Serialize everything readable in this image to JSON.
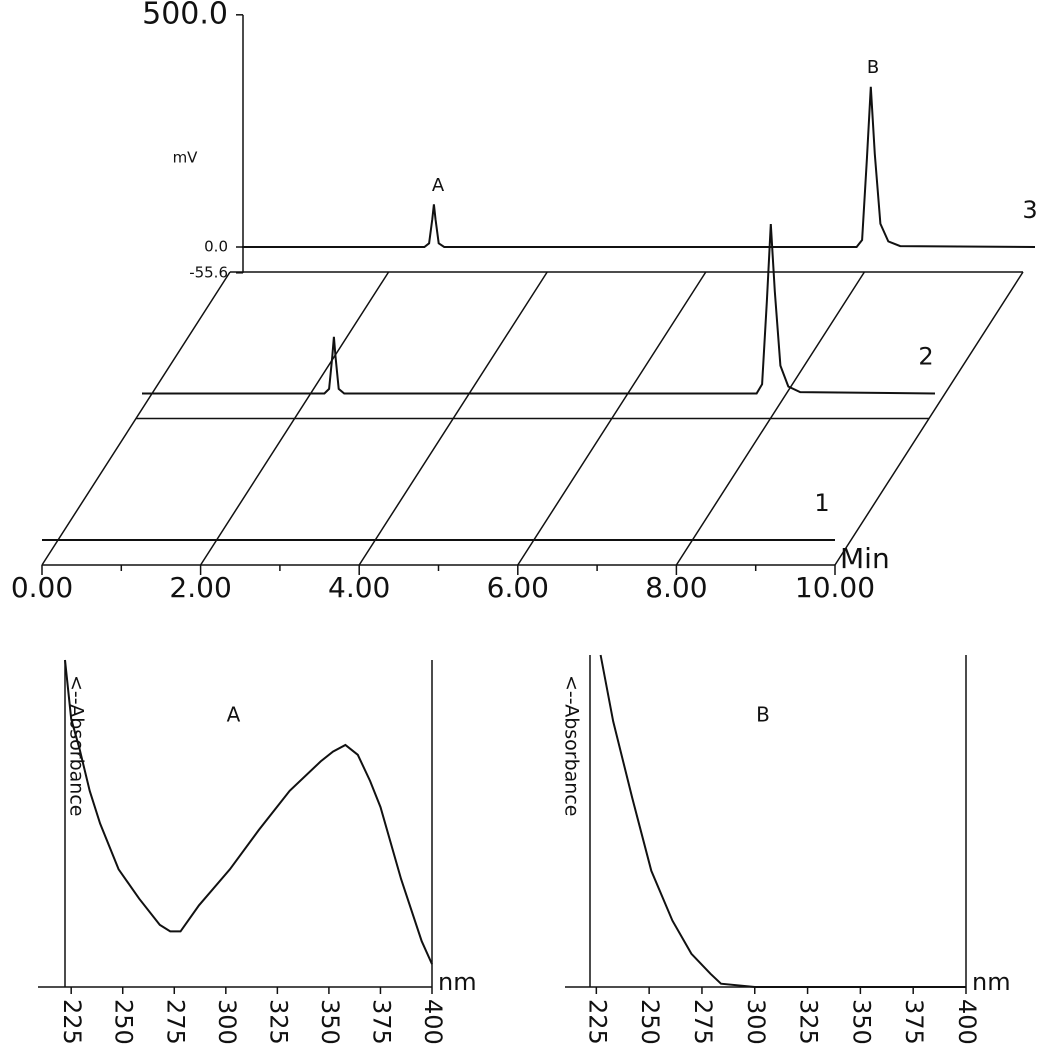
{
  "chart_data": [
    {
      "type": "stack3d",
      "ylabel": "mV",
      "xlabel": "Min",
      "ylim": [
        -55.6,
        500
      ],
      "yticks": [
        -55.6,
        {
          "value": 0,
          "label": "0.0"
        },
        {
          "value": 500,
          "label": "500.0"
        }
      ],
      "xlim": [
        0,
        10
      ],
      "xticks": [
        {
          "value": 0,
          "label": "0.00"
        },
        {
          "value": 2,
          "label": "2.00"
        },
        {
          "value": 4,
          "label": "4.00"
        },
        {
          "value": 6,
          "label": "6.00"
        },
        {
          "value": 8,
          "label": "8.00"
        },
        {
          "value": 10,
          "label": "10.00"
        }
      ],
      "peak_labels": [
        "A",
        "B"
      ],
      "x": [
        0,
        2.3,
        2.36,
        2.4,
        2.42,
        2.44,
        2.48,
        2.55,
        4.0,
        7.75,
        7.82,
        7.88,
        7.93,
        7.98,
        8.05,
        8.15,
        8.3,
        10
      ],
      "series": [
        {
          "name": "1",
          "color": "#000000",
          "values": [
            0,
            0,
            0,
            0,
            0,
            0,
            0,
            0,
            0,
            0,
            0,
            0,
            0,
            0,
            0,
            0,
            0,
            0
          ]
        },
        {
          "name": "2",
          "color": "#000000",
          "values": [
            0,
            0,
            10,
            80,
            122,
            80,
            10,
            0,
            0,
            0,
            20,
            200,
            365,
            220,
            60,
            15,
            3,
            0
          ]
        },
        {
          "name": "3",
          "color": "#000000",
          "values": [
            0,
            0,
            8,
            60,
            92,
            60,
            8,
            0,
            0,
            0,
            15,
            190,
            345,
            200,
            50,
            12,
            2,
            0
          ]
        }
      ]
    },
    {
      "type": "line",
      "title": "A",
      "ylabel": "<--Absorbance",
      "xlabel": "nm",
      "color": "#000000",
      "xlim": [
        222,
        400
      ],
      "xticks": [
        225,
        250,
        275,
        300,
        325,
        350,
        375,
        400
      ],
      "ylim": [
        0,
        1
      ],
      "x": [
        222,
        225,
        229,
        234,
        239,
        248,
        258,
        268,
        273,
        278,
        287,
        302,
        316,
        331,
        346,
        352,
        358,
        364,
        370,
        375,
        385,
        395,
        400
      ],
      "values": [
        1.0,
        0.82,
        0.73,
        0.6,
        0.5,
        0.36,
        0.27,
        0.19,
        0.17,
        0.17,
        0.25,
        0.36,
        0.48,
        0.6,
        0.69,
        0.72,
        0.74,
        0.71,
        0.63,
        0.55,
        0.33,
        0.14,
        0.07
      ]
    },
    {
      "type": "line",
      "title": "B",
      "ylabel": "<--Absorbance",
      "xlabel": "nm",
      "color": "#000000",
      "xlim": [
        222,
        400
      ],
      "xticks": [
        225,
        250,
        275,
        300,
        325,
        350,
        375,
        400
      ],
      "ylim": [
        0,
        1
      ],
      "x": [
        227,
        233,
        242,
        251,
        261,
        270,
        279,
        284,
        300,
        400
      ],
      "values": [
        1.0,
        0.8,
        0.57,
        0.35,
        0.2,
        0.1,
        0.04,
        0.01,
        0,
        0
      ]
    }
  ]
}
